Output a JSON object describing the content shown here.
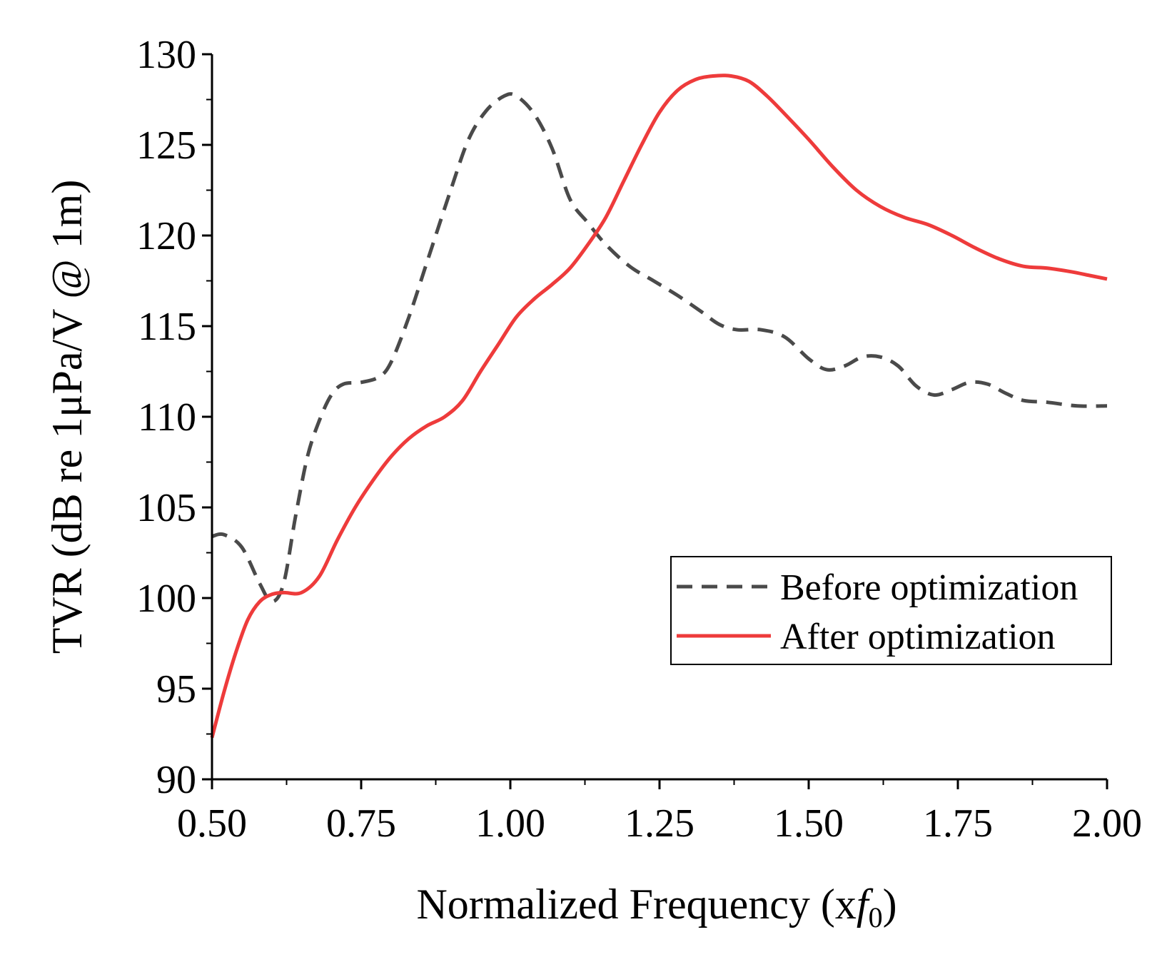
{
  "chart_data": {
    "type": "line",
    "title": "",
    "xlabel": "Normalized Frequency (x",
    "xlabel_symbol": "f",
    "xlabel_subscript": "0",
    "xlabel_close": ")",
    "ylabel": "TVR (dB re 1μPa/V @ 1m)",
    "xlim": [
      0.5,
      2.0
    ],
    "ylim": [
      90,
      130
    ],
    "xticks": [
      "0.50",
      "0.75",
      "1.00",
      "1.25",
      "1.50",
      "1.75",
      "2.00"
    ],
    "yticks": [
      "90",
      "95",
      "100",
      "105",
      "110",
      "115",
      "120",
      "125",
      "130"
    ],
    "grid": false,
    "legend_position": "center-right",
    "series": [
      {
        "name": "Before optimization",
        "color": "#4a4a4a",
        "style": "dashed",
        "x": [
          0.5,
          0.52,
          0.55,
          0.58,
          0.6,
          0.62,
          0.64,
          0.66,
          0.68,
          0.7,
          0.72,
          0.75,
          0.78,
          0.8,
          0.83,
          0.86,
          0.9,
          0.93,
          0.96,
          0.99,
          1.01,
          1.04,
          1.07,
          1.1,
          1.13,
          1.16,
          1.2,
          1.24,
          1.28,
          1.32,
          1.35,
          1.38,
          1.42,
          1.46,
          1.5,
          1.53,
          1.56,
          1.59,
          1.62,
          1.65,
          1.68,
          1.71,
          1.74,
          1.77,
          1.8,
          1.83,
          1.86,
          1.9,
          1.95,
          2.0
        ],
        "y": [
          103.4,
          103.5,
          102.8,
          100.8,
          99.8,
          100.8,
          104.5,
          107.8,
          109.8,
          111.2,
          111.8,
          111.9,
          112.2,
          113.0,
          115.5,
          118.5,
          122.5,
          125.3,
          126.9,
          127.7,
          127.7,
          126.7,
          124.8,
          122.0,
          120.7,
          119.5,
          118.3,
          117.5,
          116.7,
          115.8,
          115.1,
          114.8,
          114.8,
          114.4,
          113.2,
          112.6,
          112.8,
          113.3,
          113.3,
          112.8,
          111.7,
          111.2,
          111.5,
          111.9,
          111.8,
          111.3,
          110.9,
          110.8,
          110.6,
          110.6
        ]
      },
      {
        "name": "After optimization",
        "color": "#ee3b3b",
        "style": "solid",
        "x": [
          0.5,
          0.52,
          0.54,
          0.56,
          0.58,
          0.6,
          0.62,
          0.65,
          0.68,
          0.71,
          0.74,
          0.77,
          0.8,
          0.83,
          0.86,
          0.89,
          0.92,
          0.95,
          0.98,
          1.01,
          1.04,
          1.07,
          1.1,
          1.13,
          1.16,
          1.19,
          1.22,
          1.25,
          1.28,
          1.31,
          1.34,
          1.37,
          1.4,
          1.43,
          1.46,
          1.5,
          1.54,
          1.58,
          1.62,
          1.66,
          1.7,
          1.74,
          1.78,
          1.82,
          1.86,
          1.9,
          1.94,
          1.97,
          2.0
        ],
        "y": [
          92.3,
          94.8,
          97.0,
          98.8,
          99.8,
          100.2,
          100.3,
          100.3,
          101.2,
          103.2,
          105.0,
          106.5,
          107.8,
          108.8,
          109.5,
          110.0,
          110.9,
          112.5,
          114.0,
          115.5,
          116.5,
          117.3,
          118.2,
          119.5,
          121.0,
          123.0,
          125.0,
          126.8,
          128.0,
          128.6,
          128.8,
          128.8,
          128.5,
          127.7,
          126.7,
          125.3,
          123.8,
          122.5,
          121.6,
          121.0,
          120.6,
          120.0,
          119.3,
          118.7,
          118.3,
          118.2,
          118.0,
          117.8,
          117.6
        ]
      }
    ]
  }
}
